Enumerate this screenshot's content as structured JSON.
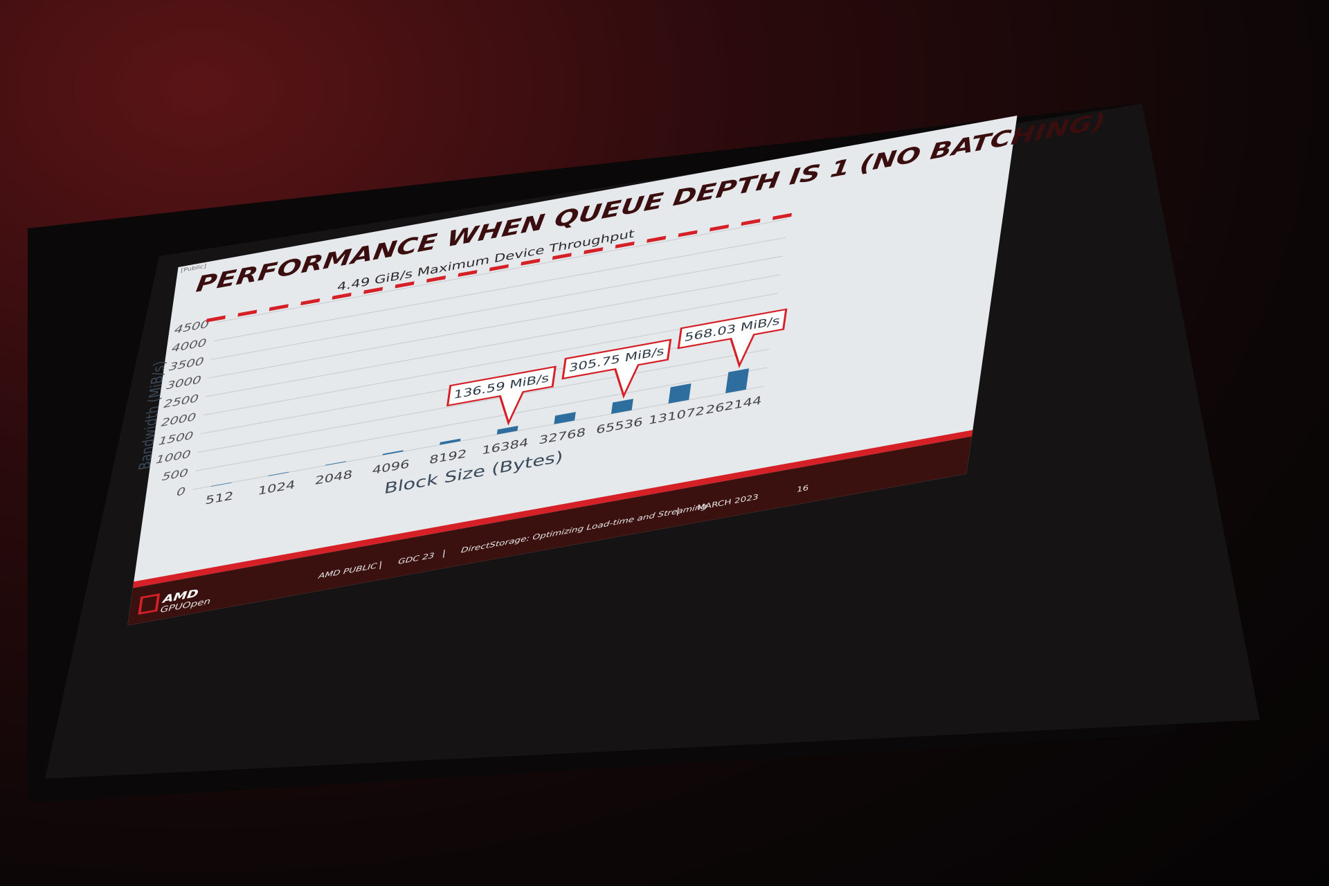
{
  "slide": {
    "tag": "[Public]",
    "title": "PERFORMANCE WHEN QUEUE DEPTH IS 1 (NO BATCHING)",
    "footer": {
      "logo_brand": "AMD",
      "logo_sub": "GPUOpen",
      "classification": "AMD PUBLIC",
      "event": "GDC 23",
      "talk": "DirectStorage: Optimizing Load-time and Streaming",
      "date": "MARCH 2023",
      "separator": "|",
      "page_number": "16"
    }
  },
  "colors": {
    "bar": "#2d6e9e",
    "accent_red": "#d42026",
    "title_dark": "#3a0e0f",
    "footer_dark": "#3b1110"
  },
  "chart_data": {
    "type": "bar",
    "xlabel": "Block Size (Bytes)",
    "ylabel": "Bandwidth (MiB/s)",
    "ylim": [
      0,
      4500
    ],
    "yticks": [
      0,
      500,
      1000,
      1500,
      2000,
      2500,
      3000,
      3500,
      4000,
      4500
    ],
    "grid": true,
    "categories": [
      "512",
      "1024",
      "2048",
      "4096",
      "8192",
      "16384",
      "32768",
      "65536",
      "131072",
      "262144"
    ],
    "values": [
      4,
      9,
      18,
      36,
      70,
      136.59,
      230,
      305.75,
      440,
      568.03
    ],
    "reference_line": {
      "value": 4597.76,
      "label": "4.49 GiB/s Maximum Device Throughput",
      "style": "dashed"
    },
    "annotations": [
      {
        "category": "16384",
        "label": "136.59 MiB/s"
      },
      {
        "category": "65536",
        "label": "305.75 MiB/s"
      },
      {
        "category": "262144",
        "label": "568.03 MiB/s"
      }
    ]
  }
}
